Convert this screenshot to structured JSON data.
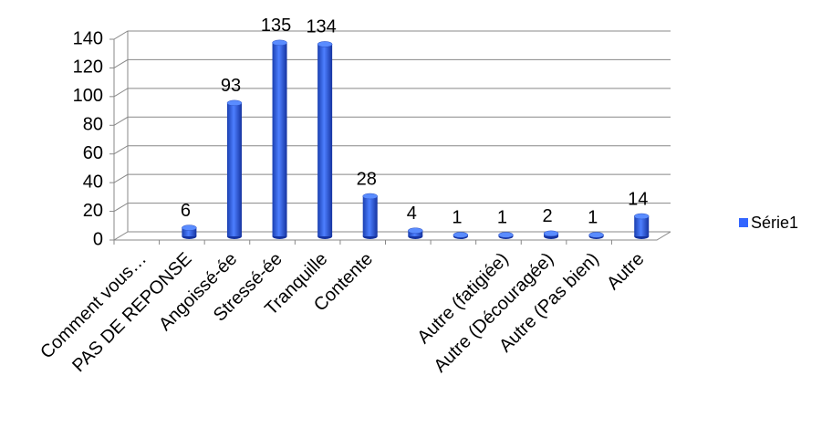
{
  "chart_data": {
    "type": "bar3d",
    "categories": [
      "Comment vous…",
      "PAS DE REPONSE",
      "Angoissé-ée",
      "Stressé-ée",
      "Tranquille",
      "Contente",
      null,
      null,
      "Autre (fatigiée)",
      "Autre (Découragée)",
      "Autre (Pas bien)",
      "Autre"
    ],
    "series": [
      {
        "name": "Série1",
        "color": "#3366ff",
        "values": [
          null,
          6,
          93,
          135,
          134,
          28,
          4,
          1,
          1,
          2,
          1,
          14
        ]
      }
    ],
    "ylim": [
      0,
      140
    ],
    "yticks": [
      0,
      20,
      40,
      60,
      80,
      100,
      120,
      140
    ],
    "grid": true,
    "legend": "right"
  }
}
